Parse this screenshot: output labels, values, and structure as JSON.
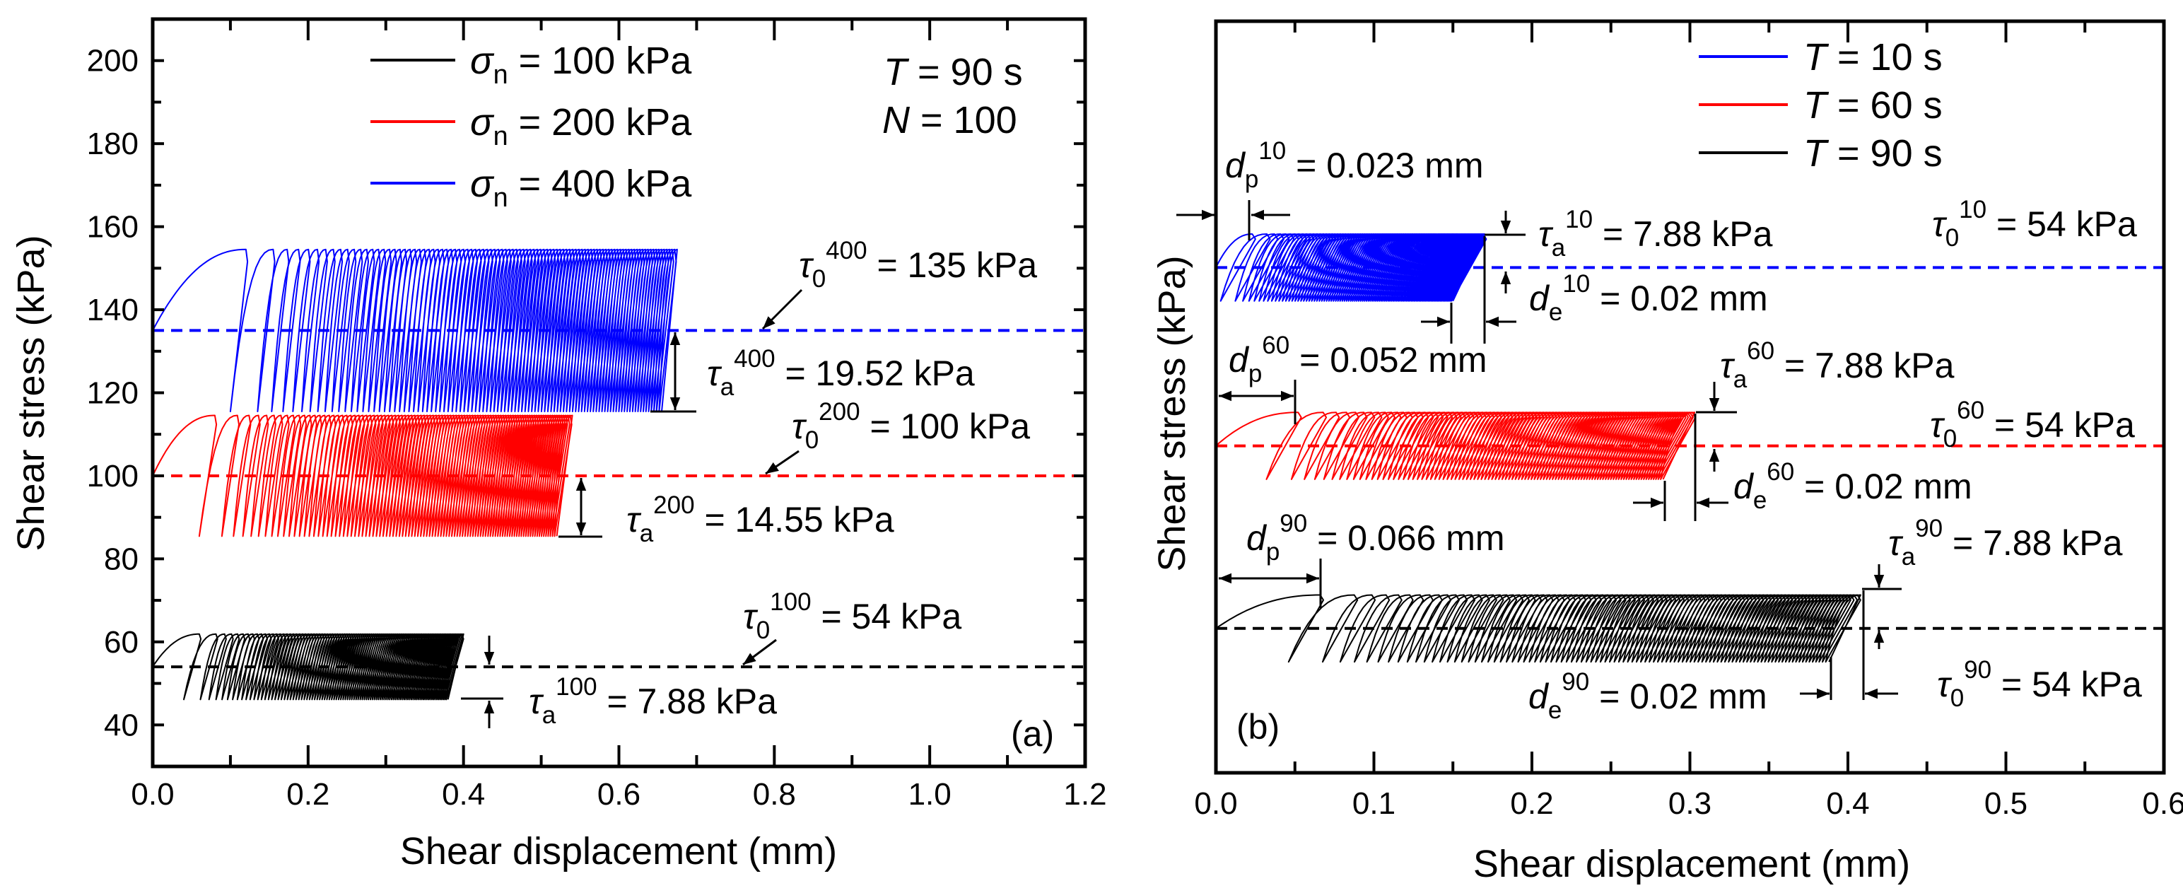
{
  "chart_data": [
    {
      "type": "line",
      "panel_label": "(a)",
      "xlabel": "Shear displacement (mm)",
      "ylabel": "Shear stress (kPa)",
      "xlim": [
        0,
        1.2
      ],
      "ylim": [
        30,
        210
      ],
      "xticks": [
        "0.0",
        "0.2",
        "0.4",
        "0.6",
        "0.8",
        "1.0",
        "1.2"
      ],
      "xtick_values": [
        0,
        0.2,
        0.4,
        0.6,
        0.8,
        1.0,
        1.2
      ],
      "yticks": [
        "40",
        "60",
        "80",
        "100",
        "120",
        "140",
        "160",
        "180",
        "200"
      ],
      "ytick_values": [
        40,
        60,
        80,
        100,
        120,
        140,
        160,
        180,
        200
      ],
      "legend_location": "top-center",
      "legend": [
        {
          "sym": "σ",
          "sub": "n",
          "rest": " = 100 kPa",
          "color": "#000000"
        },
        {
          "sym": "σ",
          "sub": "n",
          "rest": " = 200 kPa",
          "color": "#ff0000"
        },
        {
          "sym": "σ",
          "sub": "n",
          "rest": " = 400 kPa",
          "color": "#0000ff"
        }
      ],
      "conditions": [
        {
          "sym": "T",
          "rest": " = 90 s"
        },
        {
          "sym": "N",
          "rest": " = 100"
        }
      ],
      "series": [
        {
          "name": "σn = 100 kPa",
          "color": "#000000",
          "tau0": 54,
          "tau_a": 7.88,
          "first_peak": 0.06,
          "de": 0.02,
          "final_peak": 0.4,
          "cycles": 100
        },
        {
          "name": "σn = 200 kPa",
          "color": "#ff0000",
          "tau0": 100,
          "tau_a": 14.55,
          "first_peak": 0.08,
          "de": 0.02,
          "final_peak": 0.54,
          "cycles": 100
        },
        {
          "name": "σn = 400 kPa",
          "color": "#0000ff",
          "tau0": 135,
          "tau_a": 19.52,
          "first_peak": 0.12,
          "de": 0.02,
          "final_peak": 0.675,
          "cycles": 100
        }
      ],
      "annotations": [
        {
          "sym": "τ",
          "sub": "0",
          "sup": "400",
          "rest": " = 135 kPa"
        },
        {
          "sym": "τ",
          "sub": "a",
          "sup": "400",
          "rest": " = 19.52 kPa"
        },
        {
          "sym": "τ",
          "sub": "0",
          "sup": "200",
          "rest": " = 100 kPa"
        },
        {
          "sym": "τ",
          "sub": "a",
          "sup": "200",
          "rest": " = 14.55 kPa"
        },
        {
          "sym": "τ",
          "sub": "0",
          "sup": "100",
          "rest": " = 54 kPa"
        },
        {
          "sym": "τ",
          "sub": "a",
          "sup": "100",
          "rest": " = 7.88 kPa"
        }
      ]
    },
    {
      "type": "line",
      "panel_label": "(b)",
      "xlabel": "Shear displacement (mm)",
      "ylabel": "Shear stress (kPa)",
      "xlim": [
        0,
        0.6
      ],
      "ylim": [
        20,
        197
      ],
      "y_tick_labels_shown": false,
      "xticks": [
        "0.0",
        "0.1",
        "0.2",
        "0.3",
        "0.4",
        "0.5",
        "0.6"
      ],
      "xtick_values": [
        0,
        0.1,
        0.2,
        0.3,
        0.4,
        0.5,
        0.6
      ],
      "legend_location": "top-right",
      "legend": [
        {
          "sym": "T",
          "rest": " = 10 s",
          "color": "#0000ff"
        },
        {
          "sym": "T",
          "rest": " = 60 s",
          "color": "#ff0000"
        },
        {
          "sym": "T",
          "rest": " = 90 s",
          "color": "#000000"
        }
      ],
      "series": [
        {
          "name": "T = 10 s",
          "color": "#0000ff",
          "tau0": 54,
          "tau_a": 7.88,
          "first_peak": 0.023,
          "de": 0.02,
          "final_peak": 0.17,
          "cycles": 100,
          "vertical_offset": 85
        },
        {
          "name": "T = 60 s",
          "color": "#ff0000",
          "tau0": 54,
          "tau_a": 7.88,
          "first_peak": 0.052,
          "de": 0.02,
          "final_peak": 0.303,
          "cycles": 100,
          "vertical_offset": 43
        },
        {
          "name": "T = 90 s",
          "color": "#000000",
          "tau0": 54,
          "tau_a": 7.88,
          "first_peak": 0.066,
          "de": 0.02,
          "final_peak": 0.408,
          "cycles": 100,
          "vertical_offset": 0
        }
      ],
      "annotations": [
        {
          "sym": "d",
          "sub": "p",
          "sup": "10",
          "rest": " = 0.023 mm"
        },
        {
          "sym": "τ",
          "sub": "a",
          "sup": "10",
          "rest": " = 7.88 kPa"
        },
        {
          "sym": "τ",
          "sub": "0",
          "sup": "10",
          "rest": " = 54 kPa"
        },
        {
          "sym": "d",
          "sub": "e",
          "sup": "10",
          "rest": " = 0.02 mm"
        },
        {
          "sym": "d",
          "sub": "p",
          "sup": "60",
          "rest": " = 0.052 mm"
        },
        {
          "sym": "τ",
          "sub": "a",
          "sup": "60",
          "rest": " = 7.88 kPa"
        },
        {
          "sym": "τ",
          "sub": "0",
          "sup": "60",
          "rest": " = 54 kPa"
        },
        {
          "sym": "d",
          "sub": "e",
          "sup": "60",
          "rest": " = 0.02 mm"
        },
        {
          "sym": "d",
          "sub": "p",
          "sup": "90",
          "rest": " = 0.066 mm"
        },
        {
          "sym": "τ",
          "sub": "a",
          "sup": "90",
          "rest": " = 7.88 kPa"
        },
        {
          "sym": "d",
          "sub": "e",
          "sup": "90",
          "rest": " = 0.02 mm"
        },
        {
          "sym": "τ",
          "sub": "0",
          "sup": "90",
          "rest": " = 54 kPa"
        }
      ]
    }
  ]
}
